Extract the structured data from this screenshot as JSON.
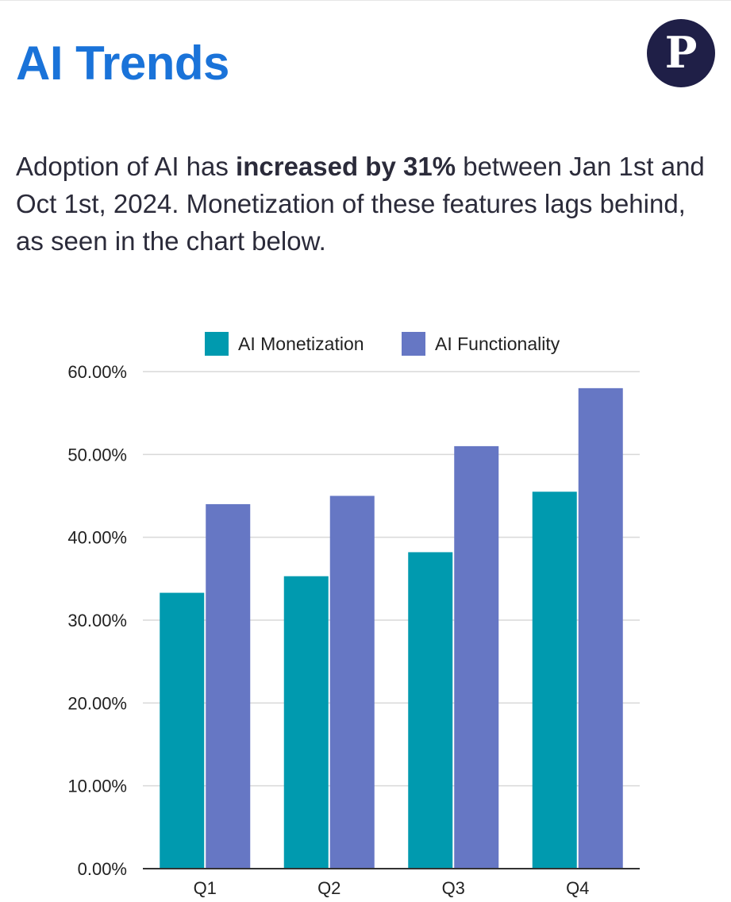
{
  "header": {
    "title": "AI Trends",
    "logo_letter": "P"
  },
  "summary": {
    "text_before": "Adoption of AI has ",
    "text_bold": "increased by 31%",
    "text_after": " between Jan 1st and Oct 1st, 2024. Monetization of these features lags behind, as seen in the chart below."
  },
  "colors": {
    "title": "#1a73d9",
    "logo_bg": "#1f1f47",
    "monetization": "#009aaf",
    "functionality": "#6677c4"
  },
  "chart_data": {
    "type": "bar",
    "categories": [
      "Q1",
      "Q2",
      "Q3",
      "Q4"
    ],
    "series": [
      {
        "name": "AI Monetization",
        "values": [
          33.3,
          35.3,
          38.2,
          45.5
        ]
      },
      {
        "name": "AI Functionality",
        "values": [
          44.0,
          45.0,
          51.0,
          58.0
        ]
      }
    ],
    "ylim": [
      0,
      60
    ],
    "yticks": [
      0,
      10,
      20,
      30,
      40,
      50,
      60
    ],
    "ytick_labels": [
      "0.00%",
      "10.00%",
      "20.00%",
      "30.00%",
      "40.00%",
      "50.00%",
      "60.00%"
    ],
    "legend": "top",
    "grid": true
  }
}
